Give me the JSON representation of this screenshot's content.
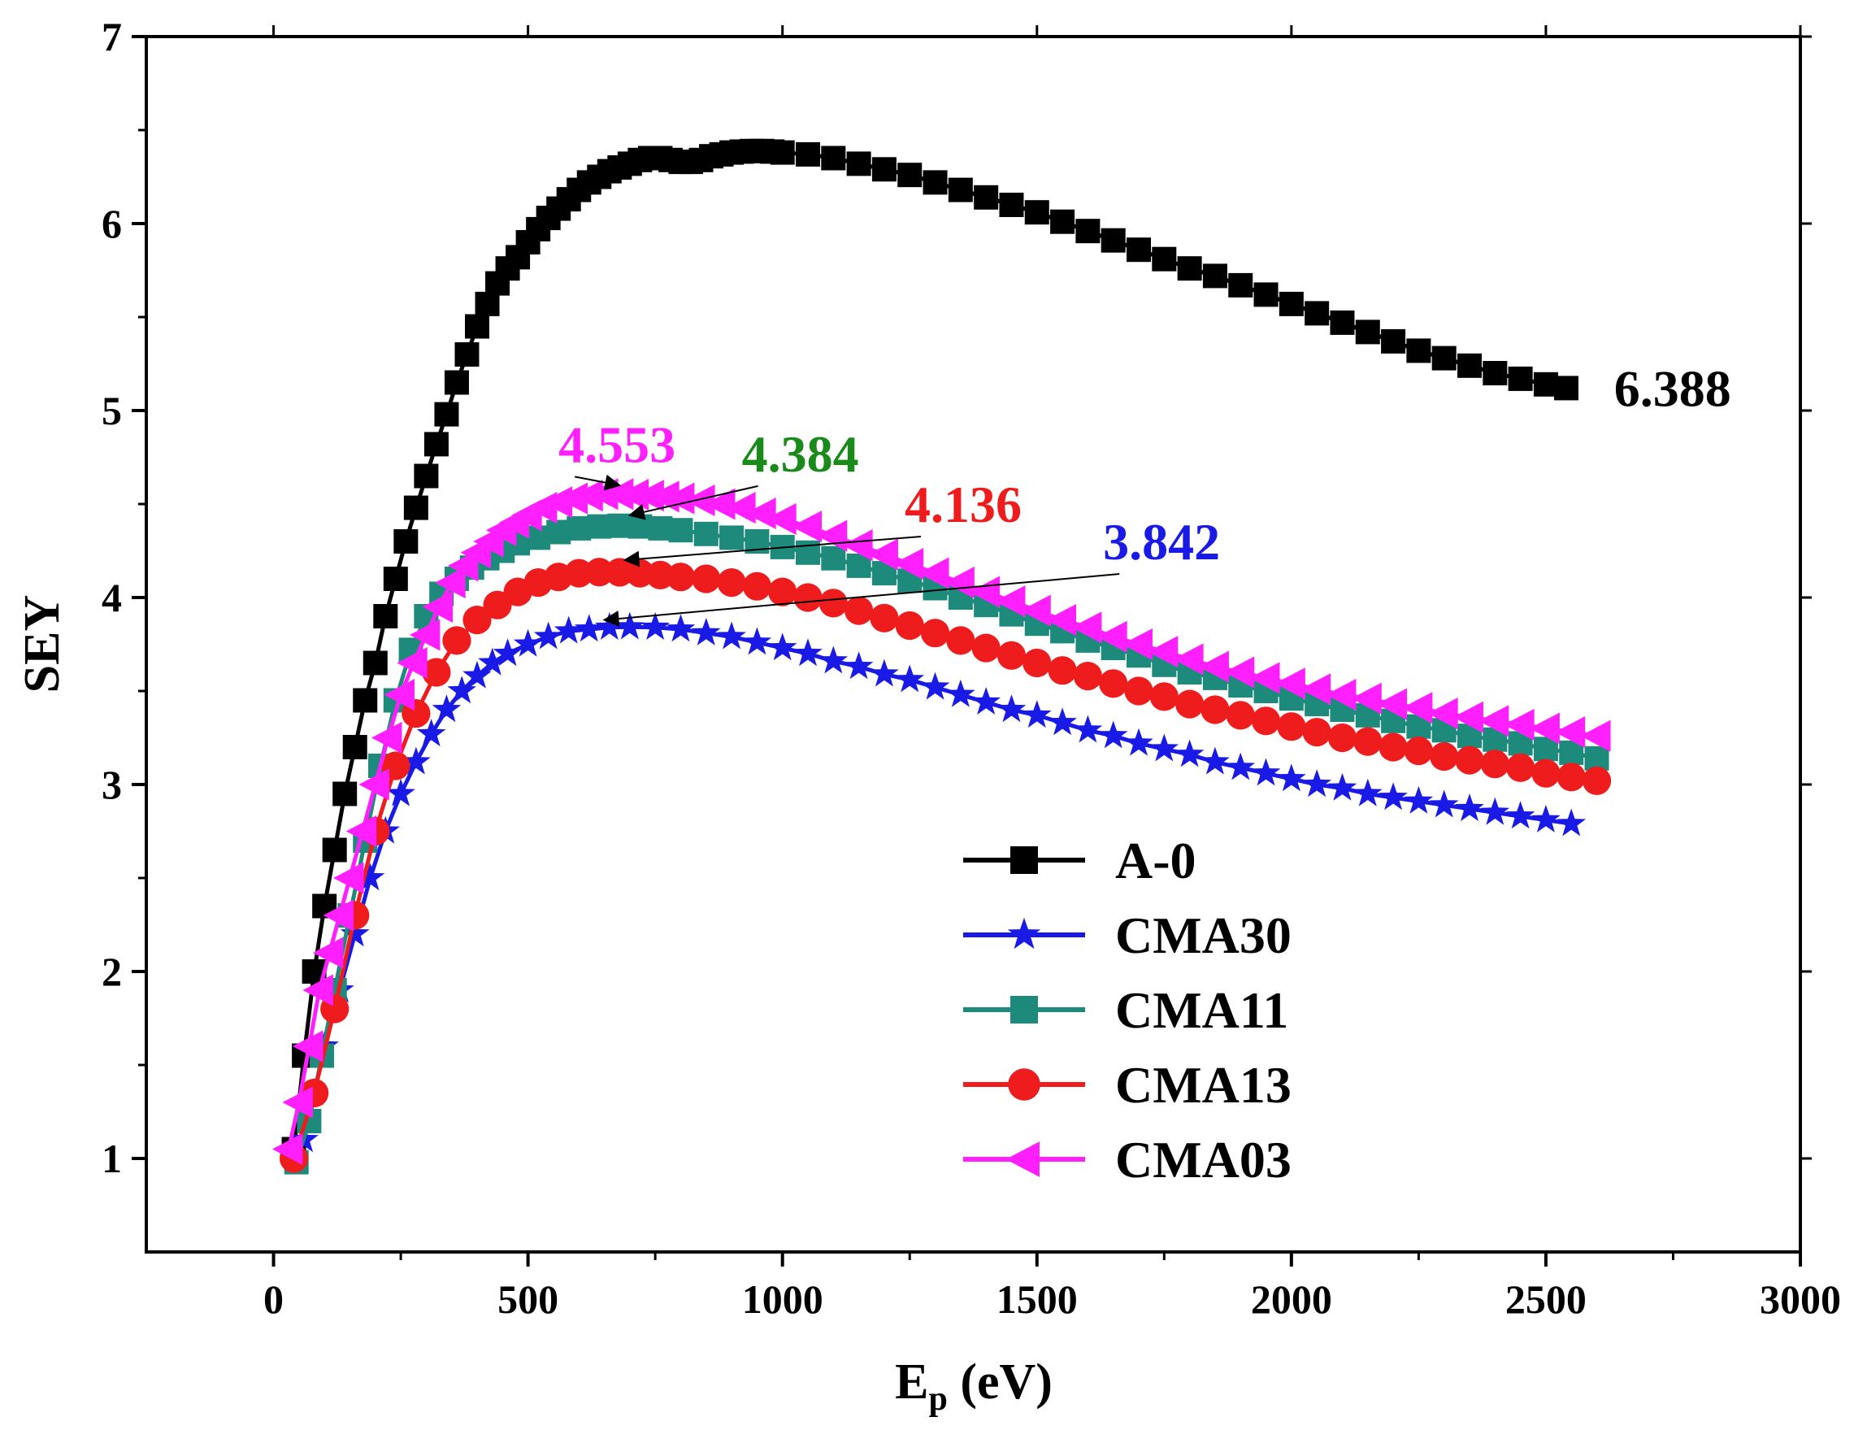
{
  "chart_data": {
    "type": "line",
    "xlabel": "E",
    "xlabel_sub": "p",
    "xlabel_unit": " (eV)",
    "ylabel": "SEY",
    "xlim": [
      -250,
      3000
    ],
    "ylim": [
      0.5,
      7
    ],
    "xticks": [
      0,
      500,
      1000,
      1500,
      2000,
      2500,
      3000
    ],
    "yticks": [
      1,
      2,
      3,
      4,
      5,
      6,
      7
    ],
    "xtick_labels": [
      "0",
      "500",
      "1000",
      "1500",
      "2000",
      "2500",
      "3000"
    ],
    "ytick_labels": [
      "1",
      "2",
      "3",
      "4",
      "5",
      "6",
      "7"
    ],
    "legend_position": "lower-right",
    "series": [
      {
        "name": "A-0",
        "color": "#000000",
        "marker": "square",
        "marker_step": 10,
        "x": [
          40,
          60,
          80,
          100,
          120,
          140,
          160,
          180,
          200,
          220,
          240,
          260,
          280,
          300,
          320,
          340,
          360,
          380,
          400,
          420,
          440,
          460,
          480,
          500,
          520,
          540,
          560,
          580,
          600,
          620,
          640,
          660,
          680,
          700,
          720,
          740,
          760,
          780,
          800,
          820,
          840,
          860,
          880,
          900,
          920,
          940,
          960,
          980,
          1000,
          1050,
          1100,
          1150,
          1200,
          1250,
          1300,
          1350,
          1400,
          1450,
          1500,
          1550,
          1600,
          1650,
          1700,
          1750,
          1800,
          1850,
          1900,
          1950,
          2000,
          2050,
          2100,
          2150,
          2200,
          2250,
          2300,
          2350,
          2400,
          2450,
          2500,
          2540
        ],
        "y": [
          1.05,
          1.55,
          2.0,
          2.35,
          2.65,
          2.95,
          3.2,
          3.45,
          3.65,
          3.9,
          4.1,
          4.3,
          4.48,
          4.65,
          4.82,
          4.98,
          5.15,
          5.3,
          5.45,
          5.57,
          5.68,
          5.76,
          5.82,
          5.9,
          5.97,
          6.03,
          6.08,
          6.13,
          6.18,
          6.22,
          6.25,
          6.28,
          6.3,
          6.32,
          6.34,
          6.35,
          6.35,
          6.34,
          6.33,
          6.33,
          6.34,
          6.36,
          6.37,
          6.38,
          6.385,
          6.388,
          6.388,
          6.385,
          6.38,
          6.37,
          6.35,
          6.32,
          6.29,
          6.26,
          6.22,
          6.18,
          6.14,
          6.1,
          6.06,
          6.01,
          5.96,
          5.91,
          5.86,
          5.81,
          5.76,
          5.72,
          5.67,
          5.62,
          5.57,
          5.52,
          5.47,
          5.42,
          5.37,
          5.32,
          5.28,
          5.24,
          5.2,
          5.17,
          5.14,
          5.12
        ]
      },
      {
        "name": "CMA30",
        "color": "#1a1ae6",
        "marker": "star",
        "marker_step": 1,
        "x": [
          40,
          60,
          80,
          100,
          130,
          160,
          190,
          220,
          250,
          280,
          310,
          340,
          370,
          400,
          430,
          460,
          500,
          540,
          580,
          620,
          660,
          700,
          750,
          800,
          850,
          900,
          950,
          1000,
          1050,
          1100,
          1150,
          1200,
          1250,
          1300,
          1350,
          1400,
          1450,
          1500,
          1550,
          1600,
          1650,
          1700,
          1750,
          1800,
          1850,
          1900,
          1950,
          2000,
          2050,
          2100,
          2150,
          2200,
          2250,
          2300,
          2350,
          2400,
          2450,
          2500,
          2550
        ],
        "y": [
          1.0,
          1.1,
          1.35,
          1.6,
          1.9,
          2.2,
          2.5,
          2.75,
          2.95,
          3.12,
          3.27,
          3.4,
          3.5,
          3.58,
          3.65,
          3.7,
          3.75,
          3.79,
          3.82,
          3.83,
          3.84,
          3.842,
          3.84,
          3.83,
          3.81,
          3.79,
          3.76,
          3.73,
          3.7,
          3.66,
          3.63,
          3.59,
          3.56,
          3.52,
          3.48,
          3.44,
          3.4,
          3.37,
          3.33,
          3.29,
          3.26,
          3.22,
          3.19,
          3.16,
          3.12,
          3.09,
          3.06,
          3.03,
          3.0,
          2.98,
          2.95,
          2.93,
          2.91,
          2.89,
          2.87,
          2.85,
          2.83,
          2.81,
          2.79
        ]
      },
      {
        "name": "CMA11",
        "color": "#1d8a7c",
        "marker": "square",
        "marker_step": 2,
        "x": [
          45,
          70,
          95,
          120,
          150,
          180,
          210,
          240,
          270,
          300,
          330,
          360,
          390,
          420,
          450,
          480,
          520,
          560,
          600,
          640,
          680,
          720,
          760,
          800,
          850,
          900,
          950,
          1000,
          1050,
          1100,
          1150,
          1200,
          1250,
          1300,
          1350,
          1400,
          1450,
          1500,
          1550,
          1600,
          1650,
          1700,
          1750,
          1800,
          1850,
          1900,
          1950,
          2000,
          2050,
          2100,
          2150,
          2200,
          2250,
          2300,
          2350,
          2400,
          2450,
          2500,
          2550,
          2600
        ],
        "y": [
          0.98,
          1.2,
          1.55,
          1.9,
          2.3,
          2.7,
          3.1,
          3.45,
          3.72,
          3.9,
          4.02,
          4.1,
          4.16,
          4.21,
          4.25,
          4.29,
          4.32,
          4.35,
          4.37,
          4.38,
          4.384,
          4.38,
          4.37,
          4.36,
          4.34,
          4.32,
          4.3,
          4.27,
          4.24,
          4.21,
          4.17,
          4.13,
          4.09,
          4.05,
          4.0,
          3.96,
          3.91,
          3.86,
          3.82,
          3.77,
          3.73,
          3.69,
          3.64,
          3.6,
          3.57,
          3.53,
          3.5,
          3.46,
          3.43,
          3.4,
          3.37,
          3.34,
          3.31,
          3.29,
          3.26,
          3.24,
          3.22,
          3.19,
          3.17,
          3.14
        ]
      },
      {
        "name": "CMA13",
        "color": "#ee1c1c",
        "marker": "circle",
        "marker_step": 1,
        "x": [
          40,
          80,
          120,
          160,
          200,
          240,
          280,
          320,
          360,
          400,
          440,
          480,
          520,
          560,
          600,
          640,
          680,
          720,
          760,
          800,
          850,
          900,
          950,
          1000,
          1050,
          1100,
          1150,
          1200,
          1250,
          1300,
          1350,
          1400,
          1450,
          1500,
          1550,
          1600,
          1650,
          1700,
          1750,
          1800,
          1850,
          1900,
          1950,
          2000,
          2050,
          2100,
          2150,
          2200,
          2250,
          2300,
          2350,
          2400,
          2450,
          2500,
          2550,
          2600
        ],
        "y": [
          1.0,
          1.35,
          1.8,
          2.3,
          2.75,
          3.1,
          3.38,
          3.6,
          3.77,
          3.88,
          3.96,
          4.03,
          4.08,
          4.11,
          4.13,
          4.136,
          4.135,
          4.13,
          4.12,
          4.11,
          4.1,
          4.08,
          4.06,
          4.03,
          4.0,
          3.97,
          3.93,
          3.89,
          3.85,
          3.81,
          3.77,
          3.73,
          3.69,
          3.65,
          3.61,
          3.58,
          3.54,
          3.5,
          3.47,
          3.43,
          3.4,
          3.37,
          3.34,
          3.31,
          3.28,
          3.25,
          3.23,
          3.2,
          3.18,
          3.15,
          3.13,
          3.11,
          3.09,
          3.06,
          3.04,
          3.02
        ]
      },
      {
        "name": "CMA03",
        "color": "#ff1fff",
        "marker": "triangle-left",
        "marker_step": 1,
        "x": [
          30,
          50,
          70,
          90,
          110,
          130,
          150,
          175,
          200,
          225,
          250,
          275,
          300,
          325,
          350,
          375,
          400,
          425,
          450,
          475,
          500,
          530,
          560,
          590,
          620,
          650,
          680,
          710,
          740,
          770,
          800,
          840,
          880,
          920,
          960,
          1000,
          1050,
          1100,
          1150,
          1200,
          1250,
          1300,
          1350,
          1400,
          1450,
          1500,
          1550,
          1600,
          1650,
          1700,
          1750,
          1800,
          1850,
          1900,
          1950,
          2000,
          2050,
          2100,
          2150,
          2200,
          2250,
          2300,
          2350,
          2400,
          2450,
          2500,
          2550,
          2600
        ],
        "y": [
          1.05,
          1.3,
          1.6,
          1.9,
          2.1,
          2.3,
          2.5,
          2.75,
          3.0,
          3.25,
          3.48,
          3.65,
          3.8,
          3.95,
          4.08,
          4.17,
          4.24,
          4.3,
          4.36,
          4.4,
          4.44,
          4.48,
          4.51,
          4.53,
          4.545,
          4.553,
          4.553,
          4.55,
          4.545,
          4.54,
          4.53,
          4.52,
          4.5,
          4.48,
          4.45,
          4.42,
          4.38,
          4.33,
          4.28,
          4.23,
          4.18,
          4.13,
          4.08,
          4.03,
          3.98,
          3.93,
          3.88,
          3.84,
          3.79,
          3.75,
          3.71,
          3.67,
          3.63,
          3.6,
          3.57,
          3.54,
          3.51,
          3.48,
          3.46,
          3.43,
          3.41,
          3.38,
          3.36,
          3.34,
          3.32,
          3.3,
          3.28,
          3.26
        ]
      }
    ],
    "annotations": [
      {
        "text": "6.388",
        "color": "#000000",
        "label_x": 2530,
        "label_y": 5.12,
        "arrow": false
      },
      {
        "text": "4.553",
        "color": "#ff1fff",
        "label_x": 560,
        "label_y": 4.82,
        "tip_x": 680,
        "tip_y": 4.6,
        "arrow": true
      },
      {
        "text": "4.384",
        "color": "#1a8a1a",
        "label_x": 920,
        "label_y": 4.77,
        "tip_x": 700,
        "tip_y": 4.44,
        "arrow": true
      },
      {
        "text": "4.136",
        "color": "#ee1c1c",
        "label_x": 1240,
        "label_y": 4.5,
        "tip_x": 690,
        "tip_y": 4.2,
        "arrow": true
      },
      {
        "text": "3.842",
        "color": "#1a1ae6",
        "label_x": 1630,
        "label_y": 4.3,
        "tip_x": 650,
        "tip_y": 3.88,
        "arrow": true
      }
    ]
  }
}
